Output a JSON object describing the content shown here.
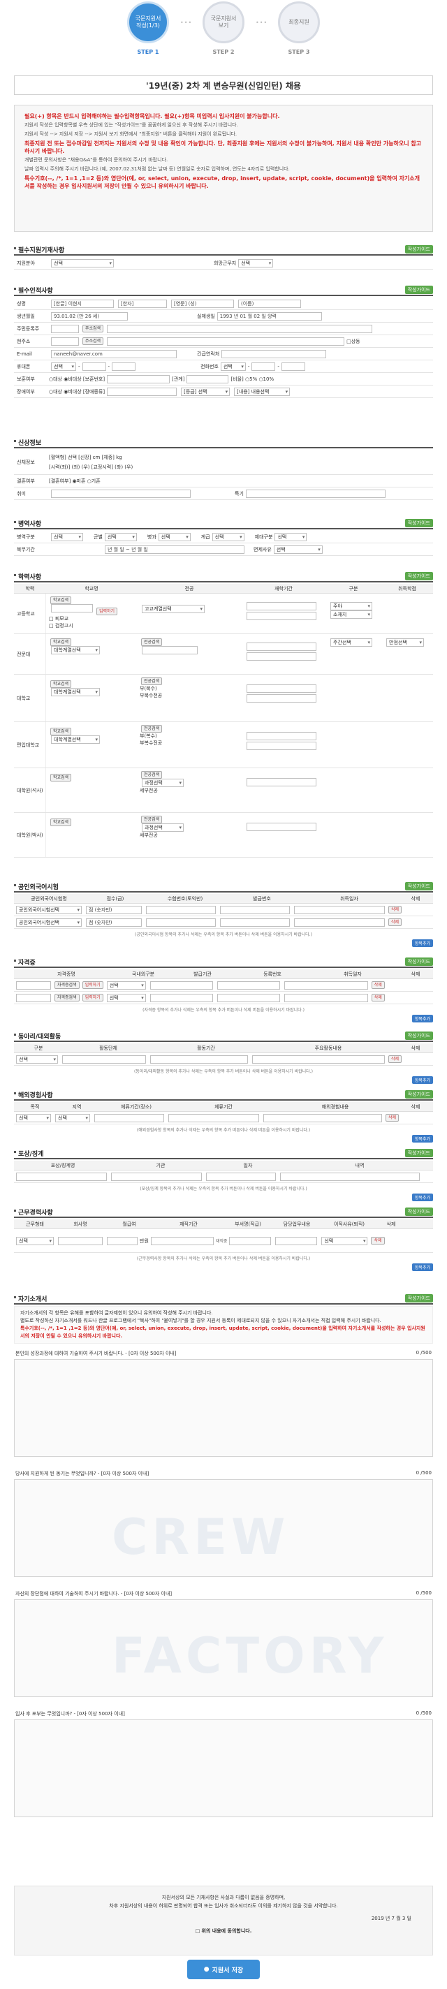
{
  "steps": [
    {
      "text": "국문지원서 작성(1/3)",
      "label": "STEP 1"
    },
    {
      "text": "국문지원서 보기",
      "label": "STEP 2"
    },
    {
      "text": "최종지원",
      "label": "STEP 3"
    }
  ],
  "title": "'19년(중) 2차 계 변승무원(신입인턴) 채용",
  "notice": {
    "line1": "필요(+) 항목은 반드시 입력해야하는 필수입력항목입니다. 필요(+)항목 미입력시 입사지원이 불가능합니다.",
    "line2": "지원서 작성은 입력항목별 우측 상단에 있는 \"작성가이드\"를 꼼꼼하게 읽으신 후 작성해 주시기 바랍니다.",
    "line3": "지원서 작성 --> 지원서 저장 --> 지원서 보기 화면에서 \"최종지원\" 버튼을 클릭해야 지원이 완료됩니다.",
    "line4": "최종지원 전 또는 접수마감일 전까지는 지원서의 수정 및 내용 확인이 가능합니다. 단, 최종지원 후에는 지원서의 수정이 불가능하며, 지원서 내용 확인만 가능하오니 참고하시기 바랍니다.",
    "line5": "개별관련 문의사항은 \"채용Q&A\"를 통하여 문의하여 주시기 바랍니다.",
    "line6": "날짜 입력시 주의해 주시기 바랍니다.(예, 2007.02.31처럼 없는 날짜 등) 연월일로 숫자로 입력하며, 연도는 4자리로 입력합니다.",
    "line7": "특수기호(--, /*, 1=1 ,1=2 등)와 영단어(예, or, select, union, execute, drop, insert, update, script, cookie, document)을 입력하여 자기소개서를 작성하는 경우 입사지원서의 저장이 안될 수 있으니 유의하시기 바랍니다."
  },
  "guide_label": "작성가이드",
  "add_label": "항목추가",
  "delete_label": "삭제",
  "sections": {
    "apply": {
      "title": "필수지원기재사항",
      "field1": "지원분야",
      "sel1": "선택",
      "field2": "희망근무지",
      "sel2": "선택"
    },
    "personal": {
      "title": "필수인적사항",
      "name": "성명",
      "name_kor": "[한글] 이현지",
      "name_han": "[한자]",
      "name_eng": "[영문] (성)",
      "name_given": "(이름)",
      "birth": "생년월일",
      "birth_val": "93.01.02 (만 26 세)",
      "real_birth": "실제생일",
      "real_val": "1993 년 01 월 02 일 양력",
      "id_no": "주민등록주",
      "addr_btn": "주소검색",
      "addr": "현주소",
      "same": "상동",
      "email": "E-mail",
      "email_val": "naneeh@naver.com",
      "emergency": "긴급연락처",
      "mobile": "휴대폰",
      "sel": "선택",
      "phone": "전화번호",
      "veteran": "보훈여부",
      "vet_opts": "○대상 ◉비대상 [보훈번호]",
      "vet_rel": "[관계]",
      "vet_rate": "[비율] ○5% ○10%",
      "disabled": "장애여부",
      "dis_opts": "○대상 ◉비대상 [장애종류]",
      "dis_grade": "[등급] 선택",
      "dis_type": "[내용] 내용선택"
    },
    "body": {
      "title": "신상정보",
      "label": "신체정보",
      "line1": "[혈액형] 선택 [신장] cm [체중] kg",
      "line2": "[시력(좌)] (좌) (우) [교정시력] (좌) (우)",
      "marital": "결혼여부",
      "marital_val": "[결혼여부] ◉미혼 ○기혼",
      "hobby": "취미",
      "special": "특기"
    },
    "military": {
      "title": "병역사항",
      "kind": "병역구분",
      "branch": "군별",
      "class": "병과",
      "rank": "계급",
      "reason": "제대구분",
      "period": "복무기간",
      "sel": "선택",
      "exempt": "면제사유",
      "ymd": "년 월 일 ~ 년 월 일"
    },
    "education": {
      "title": "학력사항",
      "headers": [
        "학력",
        "학교명",
        "전공",
        "재학기간",
        "구분",
        "취득학점"
      ],
      "rows": [
        {
          "label": "고등학교",
          "opt1": "□ 퇴모교",
          "opt2": "□ 검정고시",
          "major": "고교계열선택"
        },
        {
          "label": "전문대",
          "major": "대학계열선택",
          "status": "주간선택",
          "gpa": "만점선택"
        },
        {
          "label": "대학교",
          "major": "대학계열선택",
          "sub1": "부(복수)",
          "sub2": "부복수전공"
        },
        {
          "label": "편입대학교",
          "major": "대학계열선택",
          "sub1": "부(복수)",
          "sub2": "부복수전공"
        },
        {
          "label": "대학원(석사)",
          "major": "과정선택",
          "sub1": "세부전공"
        },
        {
          "label": "대학원(박사)",
          "major": "과정선택",
          "sub1": "세부전공"
        }
      ],
      "search": "학교검색",
      "input": "입력하기",
      "major_search": "전공검색"
    },
    "lang": {
      "title": "공인외국어시험",
      "headers": [
        "공인외국어시험명",
        "점수(급)",
        "수험번호(토익만)",
        "발급번호",
        "취득일자",
        "삭제"
      ],
      "sel": "공인외국어시험선택",
      "score": "점 (숫자만)",
      "hint": "(공인외국어시험 항목의 추가나 삭제는 우측의 항목 추가 버튼이나 삭제 버튼을 이용하시기 바랍니다.)"
    },
    "cert": {
      "title": "자격증",
      "headers": [
        "자격증명",
        "국내외구분",
        "발급기관",
        "등록번호",
        "취득일자",
        "삭제"
      ],
      "search": "자격증검색",
      "input": "입력하기",
      "sel": "선택",
      "hint": "(자격증 항목의 추가나 삭제는 우측의 항목 추가 버튼이나 삭제 버튼을 이용하시기 바랍니다.)"
    },
    "club": {
      "title": "동아리/대외활동",
      "headers": [
        "구분",
        "활동단체",
        "활동기간",
        "주요활동내용",
        "삭제"
      ],
      "sel": "선택",
      "hint": "(동아리/대외활동 항목의 추가나 삭제는 우측의 항목 추가 버튼이나 삭제 버튼을 이용하시기 바랍니다.)"
    },
    "abroad": {
      "title": "해외경험사항",
      "headers": [
        "목적",
        "지역",
        "체류기간(장소)",
        "체류기간",
        "해외경험내용",
        "삭제"
      ],
      "sel": "선택",
      "hint": "(해외경험사항 항목의 추가나 삭제는 우측의 항목 추가 버튼이나 삭제 버튼을 이용하시기 바랍니다.)"
    },
    "award": {
      "title": "포상/징계",
      "headers": [
        "포상/징계명",
        "기관",
        "일자",
        "내역"
      ],
      "hint": "(포상/징계 항목의 추가나 삭제는 우측의 항목 추가 버튼이나 삭제 버튼을 이용하시기 바랍니다.)"
    },
    "career": {
      "title": "근무경력사항",
      "headers": [
        "근무형태",
        "회사명",
        "월급여",
        "재직기간",
        "부서명(직급)",
        "담당업무내용",
        "이직사유(퇴직)",
        "삭제"
      ],
      "sel": "선택",
      "won": "만원",
      "current": "재직중",
      "hint": "(근무경력사항 항목의 추가나 삭제는 우측의 항목 추가 버튼이나 삭제 버튼을 이용하시기 바랍니다.)"
    },
    "essay": {
      "title": "자기소개서",
      "note1": "자기소개서의 각 항목은 유해를 포함하여 글자제한이 있으니 유의하여 작성해 주시기 바랍니다.",
      "note2": "별도로 작성하신 자기소개서를 워드나 한글 프로그램에서 \"복사\"하여 \"붙여넣기\"를 할 경우 지원서 등록이 제대로되지 않을 수 있으니 자기소개서는 직접 입력해 주시기 바랍니다.",
      "note3": "특수기호(--, /*, 1=1 ,1=2 등)와 영단어(예, or, select, union, execute, drop, insert, update, script, cookie, document)을 입력하여 자기소개서를 작성하는 경우 입사지원서의 저장이 안될 수 있으니 유의하시기 바랍니다.",
      "questions": [
        {
          "q": "본인의 성장과정에 대하여 기술하여 주시기 바랍니다. - [0자 이상 500자 이내]",
          "count": "0",
          "max": "/500"
        },
        {
          "q": "당사에 지원하게 된 동기는 무엇입니까? - [0자 이상 500자 이내]",
          "count": "0",
          "max": "/500"
        },
        {
          "q": "자신의 장단점에 대하여 기술하여 주시기 바랍니다. - [0자 이상 500자 이내]",
          "count": "0",
          "max": "/500"
        },
        {
          "q": "입사 후 포부는 무엇입니까? - [0자 이상 500자 이내]",
          "count": "0",
          "max": "/500"
        }
      ],
      "watermark1": "CREW",
      "watermark2": "FACTORY"
    }
  },
  "consent": {
    "line1": "지원서상의 모든 기재사항은 사실과 다름이 없음을 증명하며,",
    "line2": "차후 지원서상의 내용이 허위로 판명되어 합격 또는 입사가 취소되더라도 이의를 제기하지 않을 것을 서약합니다.",
    "date": "2019 년 7 월 3 일",
    "agree": "위의 내용에 동의합니다."
  },
  "submit_label": "지원서 저장"
}
